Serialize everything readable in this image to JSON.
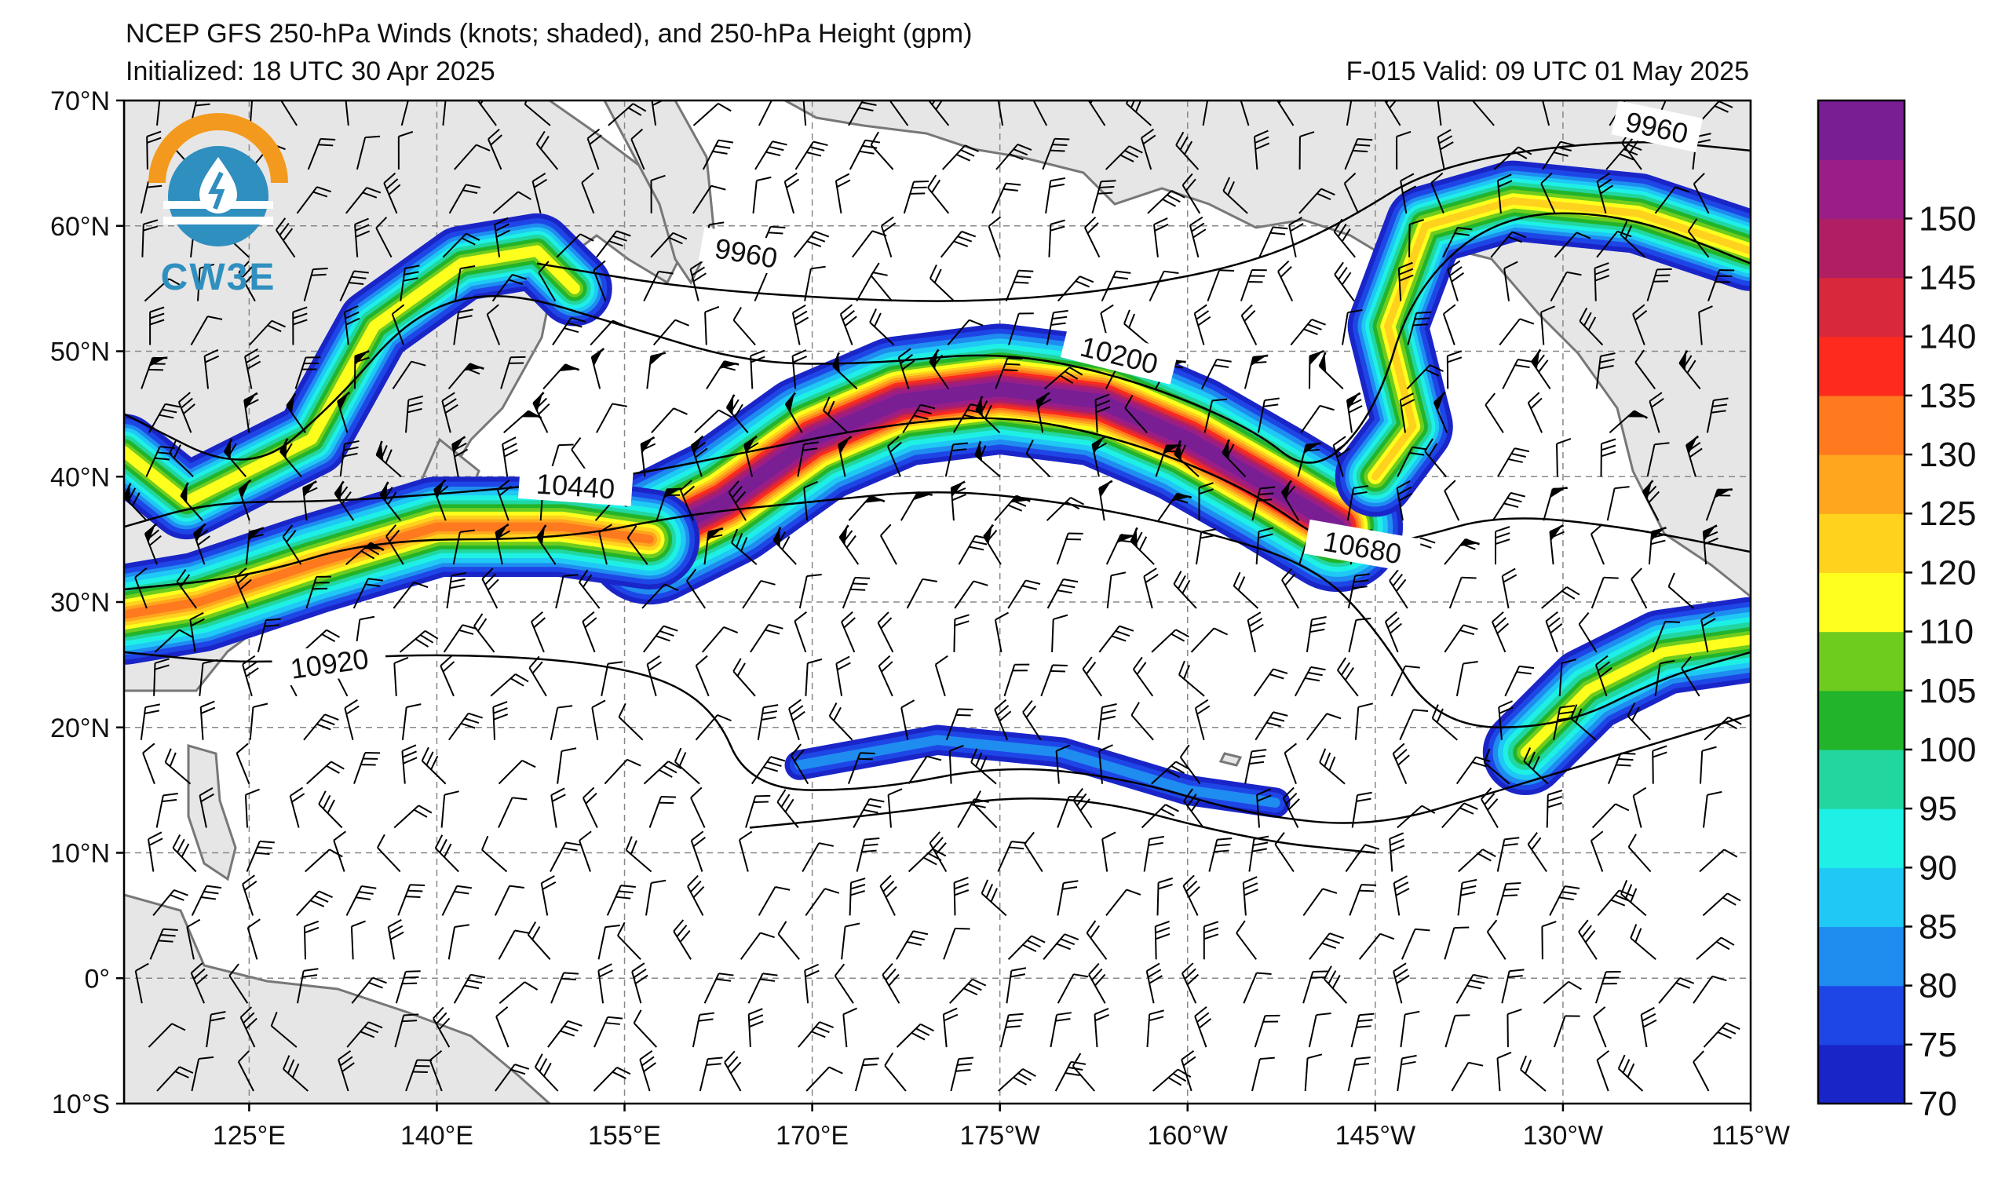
{
  "header": {
    "title": "NCEP GFS 250-hPa Winds (knots; shaded), and 250-hPa Height (gpm)",
    "initialized": "Initialized: 18 UTC 30 Apr 2025",
    "valid": "F-015  Valid: 09 UTC 01 May 2025"
  },
  "logo": {
    "text": "CW3E",
    "icon": "water-drop-sun-logo-icon"
  },
  "map": {
    "lat_labels": [
      {
        "lat": 70,
        "label": "70°N"
      },
      {
        "lat": 60,
        "label": "60°N"
      },
      {
        "lat": 50,
        "label": "50°N"
      },
      {
        "lat": 40,
        "label": "40°N"
      },
      {
        "lat": 30,
        "label": "30°N"
      },
      {
        "lat": 20,
        "label": "20°N"
      },
      {
        "lat": 10,
        "label": "10°N"
      },
      {
        "lat": 0,
        "label": "0°"
      },
      {
        "lat": -10,
        "label": "10°S"
      }
    ],
    "lon_labels": [
      {
        "lon": 125,
        "label": "125°E"
      },
      {
        "lon": 140,
        "label": "140°E"
      },
      {
        "lon": 155,
        "label": "155°E"
      },
      {
        "lon": 170,
        "label": "170°E"
      },
      {
        "lon": 185,
        "label": "175°W"
      },
      {
        "lon": 200,
        "label": "160°W"
      },
      {
        "lon": 215,
        "label": "145°W"
      },
      {
        "lon": 230,
        "label": "130°W"
      },
      {
        "lon": 245,
        "label": "115°W"
      }
    ],
    "extent": {
      "lon_min": 115,
      "lon_max": 245,
      "lat_min": -10,
      "lat_max": 70
    },
    "contour_labels": [
      "9960",
      "9960",
      "10200",
      "10440",
      "10680",
      "10920"
    ],
    "land_color": "#e6e6e6",
    "coast_color": "#777777"
  },
  "colorbar": {
    "levels": [
      70,
      75,
      80,
      85,
      90,
      95,
      100,
      105,
      110,
      120,
      125,
      130,
      135,
      140,
      145,
      150
    ],
    "labels": [
      "70",
      "75",
      "80",
      "85",
      "90",
      "95",
      "100",
      "105",
      "110",
      "120",
      "125",
      "130",
      "135",
      "140",
      "145",
      "150"
    ],
    "colors": [
      "#1a25c8",
      "#1e46e6",
      "#1f8cf0",
      "#1fc8f5",
      "#1ef0e6",
      "#22d6a0",
      "#22b42a",
      "#6ecc1e",
      "#ffff1e",
      "#ffd21e",
      "#ffa51e",
      "#ff7a1e",
      "#ff2a1e",
      "#d8283c",
      "#b01e64",
      "#9a1e86",
      "#7a1e94"
    ]
  }
}
